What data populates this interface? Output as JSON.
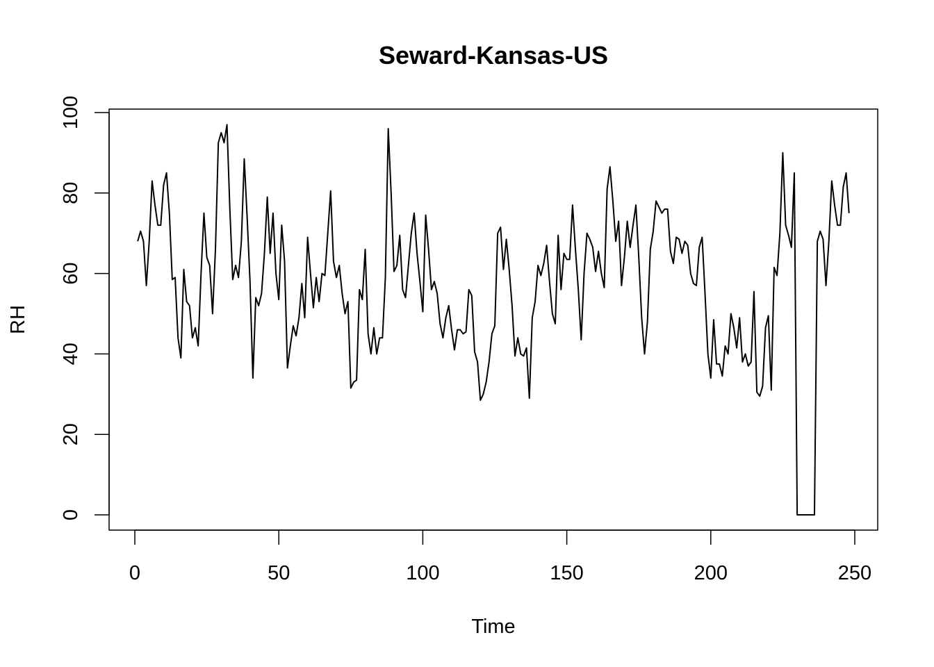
{
  "chart_data": {
    "type": "line",
    "title": "Seward-Kansas-US",
    "xlabel": "Time",
    "ylabel": "RH",
    "xlim": [
      0,
      250
    ],
    "ylim": [
      0,
      100
    ],
    "x_ticks": [
      0,
      50,
      100,
      150,
      200,
      250
    ],
    "y_ticks": [
      0,
      20,
      40,
      60,
      80,
      100
    ],
    "grid": false,
    "legend": "none",
    "line_color": "#000000",
    "series": [
      {
        "x_start": 1,
        "x_step": 1,
        "values": [
          68,
          70.5,
          68,
          57,
          68,
          83,
          77,
          72,
          72,
          82,
          85,
          75,
          58.5,
          59,
          44,
          39,
          61,
          53,
          52,
          44,
          46.5,
          42,
          60,
          75,
          64,
          62,
          50,
          66,
          92.5,
          95,
          92.5,
          97,
          76,
          58.5,
          62,
          59,
          68,
          88.5,
          74,
          58,
          34,
          54,
          52,
          55,
          65,
          79,
          65,
          75,
          60,
          53.5,
          72,
          63,
          36.5,
          42,
          47,
          44.5,
          49,
          57.5,
          49,
          69,
          60,
          51.5,
          59,
          53,
          60,
          59.5,
          70,
          80.5,
          63,
          59,
          62,
          55,
          50,
          53,
          31.5,
          33,
          33.5,
          56,
          53.5,
          66,
          45,
          40,
          46.5,
          40,
          44,
          44,
          59,
          96,
          80,
          60.5,
          62,
          69.5,
          56,
          54,
          62,
          70,
          75,
          65,
          58,
          50.5,
          74.5,
          66,
          56,
          58,
          55,
          47.5,
          44,
          49,
          52,
          46,
          41,
          46,
          46,
          45,
          45.5,
          56,
          54.5,
          40.5,
          38,
          28.5,
          30,
          33,
          38,
          45,
          47,
          70,
          71.5,
          61,
          68.5,
          61,
          52,
          39.5,
          44,
          40,
          39.5,
          41.5,
          29,
          49,
          53,
          62,
          59.5,
          62.5,
          67,
          58,
          50,
          47.5,
          69.5,
          56,
          65,
          63.5,
          63.5,
          77,
          66,
          56,
          43.5,
          60,
          70,
          68.5,
          66.5,
          60.5,
          65.5,
          60,
          56.5,
          81,
          86.5,
          78,
          68,
          73,
          57,
          64,
          73,
          66.5,
          72,
          77,
          64,
          49,
          40,
          48,
          66,
          70.5,
          78,
          76.5,
          75,
          76,
          76,
          65.5,
          62.5,
          69,
          68.5,
          65,
          68,
          67,
          60,
          57.5,
          57,
          66.5,
          69,
          55,
          40,
          34,
          48.5,
          37.5,
          37.5,
          34.5,
          42,
          40,
          50,
          46.5,
          41.5,
          49,
          38,
          40,
          37,
          38,
          55.5,
          30.5,
          29.5,
          32,
          46.5,
          49.5,
          31,
          61.5,
          59.5,
          70,
          90,
          72,
          69.5,
          66.5,
          85,
          0,
          0,
          0,
          0,
          0,
          0,
          0,
          68,
          70.5,
          68.5,
          57,
          68,
          83,
          77,
          72,
          72,
          81.5,
          85,
          75
        ]
      }
    ]
  }
}
